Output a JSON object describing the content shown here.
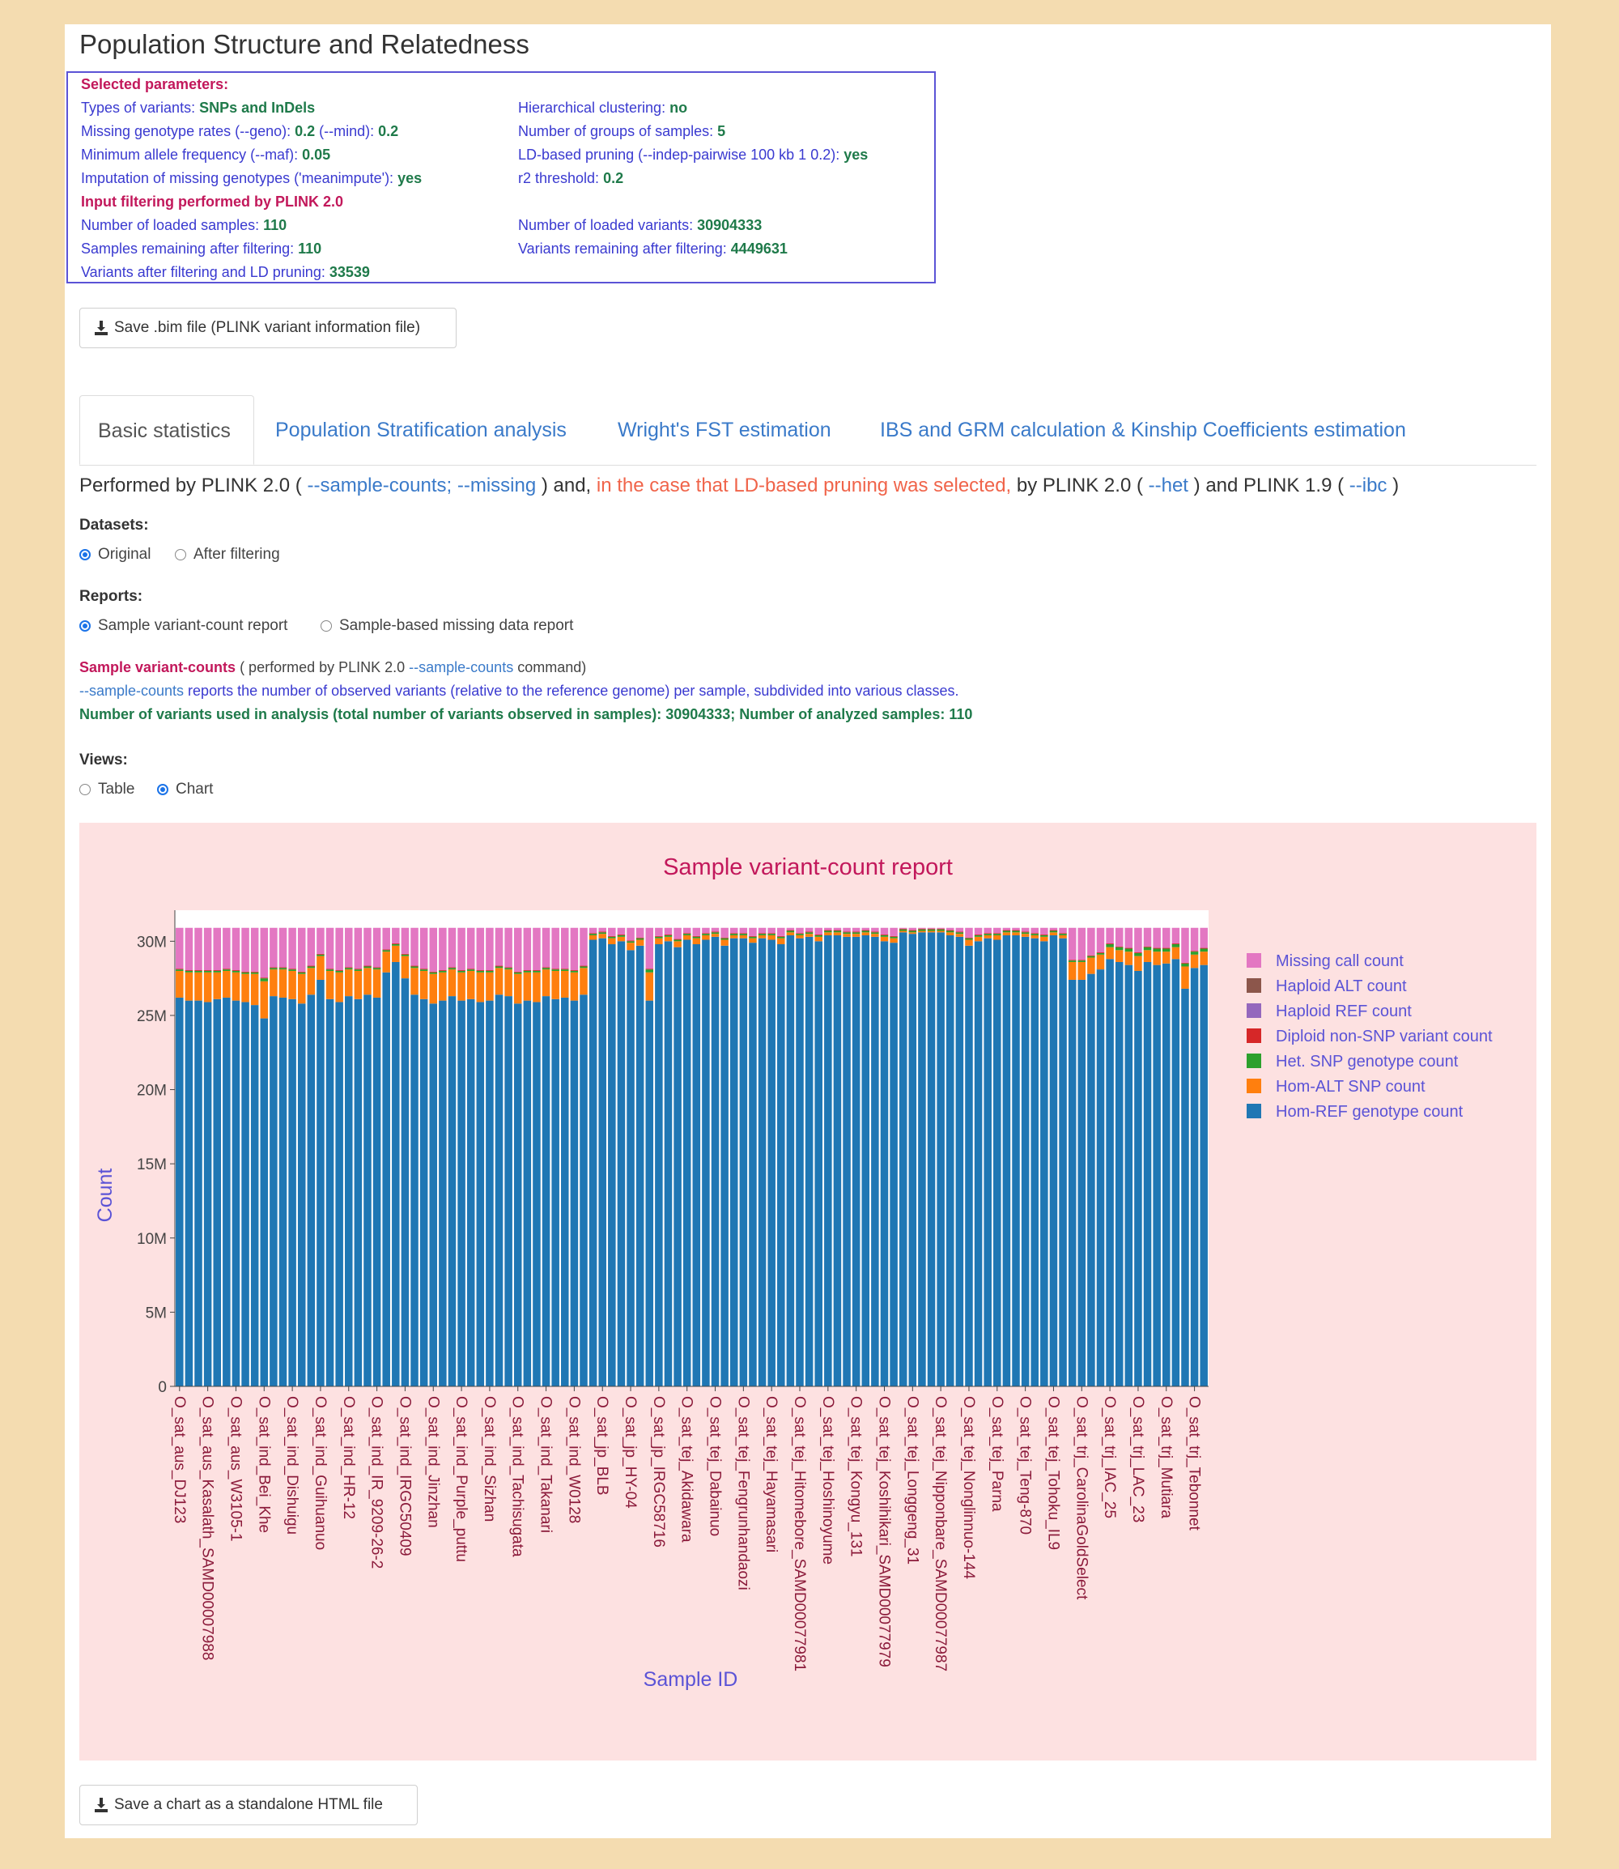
{
  "page_title": "Population Structure and Relatedness",
  "params": {
    "heading": "Selected parameters:",
    "left": [
      {
        "label": "Types of variants: ",
        "value": "SNPs and InDels"
      },
      {
        "label": "Missing genotype rates (--geno): ",
        "value": "0.2",
        "label2": " (--mind): ",
        "value2": "0.2"
      },
      {
        "label": "Minimum allele frequency (--maf): ",
        "value": "0.05"
      },
      {
        "label": "Imputation of missing genotypes ('meanimpute'): ",
        "value": "yes"
      }
    ],
    "right": [
      {
        "label": "Hierarchical clustering: ",
        "value": "no"
      },
      {
        "label": "Number of groups of samples: ",
        "value": "5"
      },
      {
        "label": "LD-based pruning (--indep-pairwise 100 kb 1 0.2): ",
        "value": "yes"
      },
      {
        "label": "r2 threshold: ",
        "value": "0.2"
      }
    ],
    "filter_heading": "Input filtering performed by PLINK 2.0",
    "filter_left": [
      {
        "label": "Number of loaded samples: ",
        "value": "110"
      },
      {
        "label": "Samples remaining after filtering: ",
        "value": "110"
      },
      {
        "label": "Variants after filtering and LD pruning: ",
        "value": "33539"
      }
    ],
    "filter_right": [
      {
        "label": "Number of loaded variants: ",
        "value": "30904333"
      },
      {
        "label": "Variants remaining after filtering: ",
        "value": "4449631"
      }
    ]
  },
  "save_bim_label": "Save .bim file (PLINK variant information file)",
  "tabs": [
    "Basic statistics",
    "Population Stratification analysis",
    "Wright's FST estimation",
    "IBS and GRM calculation & Kinship Coefficients estimation"
  ],
  "performed": {
    "p1": "Performed by PLINK 2.0 ( ",
    "c1": "--sample-counts; --missing",
    "p2": " ) and, ",
    "red": "in the case that LD-based pruning was selected,",
    "p3": " by PLINK 2.0 ( ",
    "c2": "--het",
    "p4": " ) and PLINK 1.9 ( ",
    "c3": "--ibc",
    "p5": " )"
  },
  "datasets": {
    "label": "Datasets:",
    "options": [
      "Original",
      "After filtering"
    ],
    "selected": "Original"
  },
  "reports": {
    "label": "Reports:",
    "options": [
      "Sample variant-count report",
      "Sample-based missing data report"
    ],
    "selected": "Sample variant-count report"
  },
  "svc": {
    "heading": "Sample variant-counts",
    "heading_rest1": " ( performed by PLINK 2.0 ",
    "cmd": "--sample-counts",
    "heading_rest2": " command)",
    "desc_cmd": "--sample-counts",
    "desc": " reports the number of observed variants (relative to the reference genome) per sample, subdivided into various classes.",
    "summary": "Number of variants used in analysis (total number of variants observed in samples): 30904333; Number of analyzed samples: 110"
  },
  "views": {
    "label": "Views:",
    "options": [
      "Table",
      "Chart"
    ],
    "selected": "Chart"
  },
  "save_chart_label": "Save a chart as a standalone HTML file",
  "chart_data": {
    "type": "bar",
    "stacked": true,
    "title": "Sample variant-count report",
    "xlabel": "Sample ID",
    "ylabel": "Count",
    "ylim": [
      0,
      31000000
    ],
    "yticks": [
      0,
      5000000,
      10000000,
      15000000,
      20000000,
      25000000,
      30000000
    ],
    "ytick_labels": [
      "0",
      "5M",
      "10M",
      "15M",
      "20M",
      "25M",
      "30M"
    ],
    "legend_position": "right",
    "n_samples": 110,
    "total": 30904333,
    "tick_labels": [
      "O_sat_aus_DJ123",
      "O_sat_aus_Kasalath_SAMD00007988",
      "O_sat_aus_W3105-1",
      "O_sat_ind_Bei_Khe",
      "O_sat_ind_Dishuigu",
      "O_sat_ind_Guihuanuo",
      "O_sat_ind_HR-12",
      "O_sat_ind_IR_9209-26-2",
      "O_sat_ind_IRGC50409",
      "O_sat_ind_Jinzhan",
      "O_sat_ind_Purple_puttu",
      "O_sat_ind_Sizhan",
      "O_sat_ind_Tachisugata",
      "O_sat_ind_Takanari",
      "O_sat_ind_W0128",
      "O_sat_jp_BLB",
      "O_sat_jp_HY-04",
      "O_sat_jp_IRGC58716",
      "O_sat_tej_Akidawara",
      "O_sat_tej_Dabainuo",
      "O_sat_tej_Fengrunhandaozi",
      "O_sat_tej_Hayamasari",
      "O_sat_tej_Hitomebore_SAMD00077981",
      "O_sat_tej_Hoshinoyume",
      "O_sat_tej_Kongyu_131",
      "O_sat_tej_Koshihikari_SAMD00077979",
      "O_sat_tej_Longgeng_31",
      "O_sat_tej_Nipponbare_SAMD00077987",
      "O_sat_tej_Nonglinnuo-144",
      "O_sat_tej_Parna",
      "O_sat_tej_Teng-870",
      "O_sat_tej_Tohoku_IL9",
      "O_sat_trj_CarolinaGoldSelect",
      "O_sat_trj_IAC_25",
      "O_sat_trj_LAC_23",
      "O_sat_trj_Mutiara",
      "O_sat_trj_Tebonnet"
    ],
    "series": [
      {
        "name": "Hom-REF genotype count",
        "color": "#1f77b4",
        "values": [
          26.2,
          26.0,
          26.0,
          25.9,
          26.1,
          26.2,
          26.0,
          25.9,
          25.7,
          24.8,
          26.3,
          26.2,
          26.1,
          25.8,
          26.4,
          27.4,
          26.1,
          25.9,
          26.3,
          26.1,
          26.4,
          26.2,
          27.9,
          28.6,
          27.5,
          26.4,
          26.1,
          25.8,
          26.0,
          26.3,
          26.0,
          26.1,
          25.9,
          26.0,
          26.4,
          26.3,
          25.8,
          26.0,
          25.9,
          26.3,
          26.1,
          26.2,
          26.0,
          26.4,
          30.1,
          30.2,
          29.8,
          30.0,
          29.4,
          29.7,
          26.0,
          29.8,
          30.0,
          29.6,
          30.1,
          29.8,
          30.1,
          30.3,
          29.7,
          30.2,
          30.2,
          29.9,
          30.2,
          30.1,
          29.8,
          30.4,
          30.2,
          30.3,
          30.0,
          30.4,
          30.4,
          30.3,
          30.3,
          30.4,
          30.3,
          30.0,
          29.9,
          30.6,
          30.5,
          30.6,
          30.6,
          30.6,
          30.4,
          30.3,
          29.7,
          30.0,
          30.2,
          30.1,
          30.4,
          30.4,
          30.3,
          30.2,
          30.0,
          30.4,
          30.2,
          27.4,
          27.4,
          27.8,
          28.1,
          28.8,
          28.6,
          28.4,
          28.0,
          28.6,
          28.4,
          28.5,
          28.8,
          26.8,
          28.2,
          28.4
        ]
      },
      {
        "name": "Hom-ALT SNP count",
        "color": "#ff7f0e",
        "values": [
          1.8,
          1.9,
          1.9,
          2.0,
          1.8,
          1.8,
          1.9,
          1.9,
          2.1,
          2.5,
          1.8,
          1.9,
          1.9,
          2.0,
          1.8,
          1.6,
          1.9,
          2.0,
          1.8,
          1.9,
          1.8,
          1.9,
          1.4,
          1.1,
          1.5,
          1.8,
          1.9,
          2.0,
          1.9,
          1.8,
          1.9,
          1.9,
          2.0,
          1.9,
          1.8,
          1.8,
          2.0,
          1.9,
          2.0,
          1.8,
          1.9,
          1.8,
          1.9,
          1.8,
          0.3,
          0.3,
          0.4,
          0.3,
          0.5,
          0.4,
          1.9,
          0.4,
          0.3,
          0.4,
          0.3,
          0.4,
          0.3,
          0.2,
          0.4,
          0.2,
          0.2,
          0.3,
          0.2,
          0.3,
          0.4,
          0.2,
          0.2,
          0.2,
          0.3,
          0.2,
          0.2,
          0.2,
          0.2,
          0.2,
          0.2,
          0.3,
          0.3,
          0.1,
          0.1,
          0.1,
          0.1,
          0.1,
          0.2,
          0.2,
          0.4,
          0.3,
          0.2,
          0.3,
          0.2,
          0.2,
          0.2,
          0.2,
          0.3,
          0.2,
          0.2,
          1.2,
          1.2,
          1.1,
          1.0,
          0.8,
          0.8,
          0.9,
          1.0,
          0.8,
          0.9,
          0.8,
          0.8,
          1.5,
          0.9,
          0.9
        ]
      },
      {
        "name": "Het. SNP genotype count",
        "color": "#2ca02c",
        "values": [
          0.1,
          0.1,
          0.1,
          0.1,
          0.1,
          0.1,
          0.1,
          0.1,
          0.1,
          0.2,
          0.1,
          0.1,
          0.1,
          0.1,
          0.1,
          0.1,
          0.1,
          0.1,
          0.1,
          0.1,
          0.1,
          0.1,
          0.1,
          0.1,
          0.1,
          0.1,
          0.1,
          0.1,
          0.1,
          0.1,
          0.1,
          0.1,
          0.1,
          0.1,
          0.1,
          0.1,
          0.1,
          0.1,
          0.1,
          0.1,
          0.1,
          0.1,
          0.1,
          0.1,
          0.1,
          0.1,
          0.1,
          0.1,
          0.1,
          0.1,
          0.2,
          0.1,
          0.1,
          0.1,
          0.1,
          0.1,
          0.1,
          0.1,
          0.1,
          0.1,
          0.1,
          0.1,
          0.1,
          0.1,
          0.1,
          0.1,
          0.1,
          0.1,
          0.1,
          0.1,
          0.1,
          0.1,
          0.1,
          0.1,
          0.1,
          0.1,
          0.1,
          0.1,
          0.1,
          0.1,
          0.1,
          0.1,
          0.1,
          0.1,
          0.1,
          0.1,
          0.1,
          0.1,
          0.1,
          0.1,
          0.1,
          0.1,
          0.1,
          0.1,
          0.1,
          0.1,
          0.1,
          0.1,
          0.1,
          0.2,
          0.2,
          0.2,
          0.2,
          0.2,
          0.2,
          0.2,
          0.2,
          0.2,
          0.2,
          0.2
        ]
      },
      {
        "name": "Diploid non-SNP variant count",
        "color": "#d62728",
        "values": [
          0.05,
          0.05,
          0.05,
          0.05,
          0.05,
          0.05,
          0.05,
          0.05,
          0.05,
          0.05,
          0.05,
          0.05,
          0.05,
          0.05,
          0.05,
          0.05,
          0.05,
          0.05,
          0.05,
          0.05,
          0.05,
          0.05,
          0.05,
          0.05,
          0.05,
          0.05,
          0.05,
          0.05,
          0.05,
          0.05,
          0.05,
          0.05,
          0.05,
          0.05,
          0.05,
          0.05,
          0.05,
          0.05,
          0.05,
          0.05,
          0.05,
          0.05,
          0.05,
          0.05,
          0.05,
          0.05,
          0.05,
          0.05,
          0.05,
          0.05,
          0.05,
          0.05,
          0.05,
          0.05,
          0.05,
          0.05,
          0.05,
          0.05,
          0.05,
          0.05,
          0.05,
          0.05,
          0.05,
          0.05,
          0.05,
          0.05,
          0.05,
          0.05,
          0.05,
          0.05,
          0.05,
          0.05,
          0.05,
          0.05,
          0.05,
          0.05,
          0.05,
          0.05,
          0.05,
          0.05,
          0.05,
          0.05,
          0.05,
          0.05,
          0.05,
          0.05,
          0.05,
          0.05,
          0.05,
          0.05,
          0.05,
          0.05,
          0.05,
          0.05,
          0.05,
          0.05,
          0.05,
          0.05,
          0.05,
          0.05,
          0.05,
          0.05,
          0.05,
          0.05,
          0.05,
          0.05,
          0.05,
          0.05,
          0.05,
          0.05
        ]
      },
      {
        "name": "Haploid REF count",
        "color": "#9467bd",
        "values": [
          0,
          0,
          0,
          0,
          0,
          0,
          0,
          0,
          0,
          0,
          0,
          0,
          0,
          0,
          0,
          0,
          0,
          0,
          0,
          0,
          0,
          0,
          0,
          0,
          0,
          0,
          0,
          0,
          0,
          0,
          0,
          0,
          0,
          0,
          0,
          0,
          0,
          0,
          0,
          0,
          0,
          0,
          0,
          0,
          0,
          0,
          0,
          0,
          0,
          0,
          0,
          0,
          0,
          0,
          0,
          0,
          0,
          0,
          0,
          0,
          0,
          0,
          0,
          0,
          0,
          0,
          0,
          0,
          0,
          0,
          0,
          0,
          0,
          0,
          0,
          0,
          0,
          0,
          0,
          0,
          0,
          0,
          0,
          0,
          0,
          0,
          0,
          0,
          0,
          0,
          0,
          0,
          0,
          0,
          0,
          0,
          0,
          0,
          0,
          0,
          0,
          0,
          0,
          0,
          0,
          0,
          0,
          0,
          0,
          0
        ]
      },
      {
        "name": "Haploid ALT count",
        "color": "#8c564b",
        "values": [
          0,
          0,
          0,
          0,
          0,
          0,
          0,
          0,
          0,
          0,
          0,
          0,
          0,
          0,
          0,
          0,
          0,
          0,
          0,
          0,
          0,
          0,
          0,
          0,
          0,
          0,
          0,
          0,
          0,
          0,
          0,
          0,
          0,
          0,
          0,
          0,
          0,
          0,
          0,
          0,
          0,
          0,
          0,
          0,
          0,
          0,
          0,
          0,
          0,
          0,
          0,
          0,
          0,
          0,
          0,
          0,
          0,
          0,
          0,
          0,
          0,
          0,
          0,
          0,
          0,
          0,
          0,
          0,
          0,
          0,
          0,
          0,
          0,
          0,
          0,
          0,
          0,
          0,
          0,
          0,
          0,
          0,
          0,
          0,
          0,
          0,
          0,
          0,
          0,
          0,
          0,
          0,
          0,
          0,
          0,
          0,
          0,
          0,
          0,
          0,
          0,
          0,
          0,
          0,
          0,
          0,
          0,
          0,
          0,
          0
        ]
      },
      {
        "name": "Missing call count",
        "color": "#e377c2",
        "values": "remainder_to_total"
      }
    ],
    "value_unit": "millions"
  }
}
